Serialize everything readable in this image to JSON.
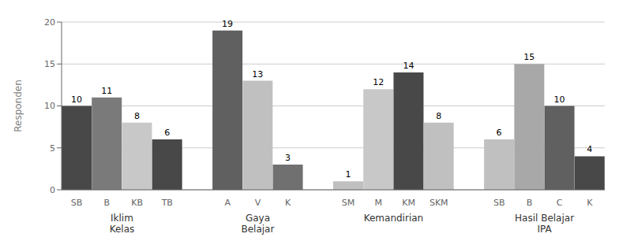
{
  "chart_data": {
    "type": "bar",
    "ylabel": "Responden",
    "ylim": [
      0,
      20
    ],
    "yticks": [
      0,
      5,
      10,
      15,
      20
    ],
    "grid": true,
    "data_labels": true,
    "groups": [
      {
        "label": "Iklim\nKelas",
        "categories": [
          "SB",
          "B",
          "KB",
          "TB"
        ],
        "values": [
          10,
          11,
          8,
          6
        ],
        "colors": [
          "#484848",
          "#7a7a7a",
          "#c8c8c8",
          "#484848"
        ]
      },
      {
        "label": "Gaya\nBelajar",
        "categories": [
          "A",
          "V",
          "K"
        ],
        "values": [
          19,
          13,
          3
        ],
        "colors": [
          "#606060",
          "#c0c0c0",
          "#707070"
        ]
      },
      {
        "label": "Kemandirian",
        "categories": [
          "SM",
          "M",
          "KM",
          "SKM"
        ],
        "values": [
          1,
          12,
          14,
          8
        ],
        "colors": [
          "#c0c0c0",
          "#c8c8c8",
          "#484848",
          "#c0c0c0"
        ]
      },
      {
        "label": "Hasil Belajar\nIPA",
        "categories": [
          "SB",
          "B",
          "C",
          "K"
        ],
        "values": [
          6,
          15,
          10,
          4
        ],
        "colors": [
          "#c0c0c0",
          "#a8a8a8",
          "#606060",
          "#484848"
        ]
      }
    ]
  }
}
